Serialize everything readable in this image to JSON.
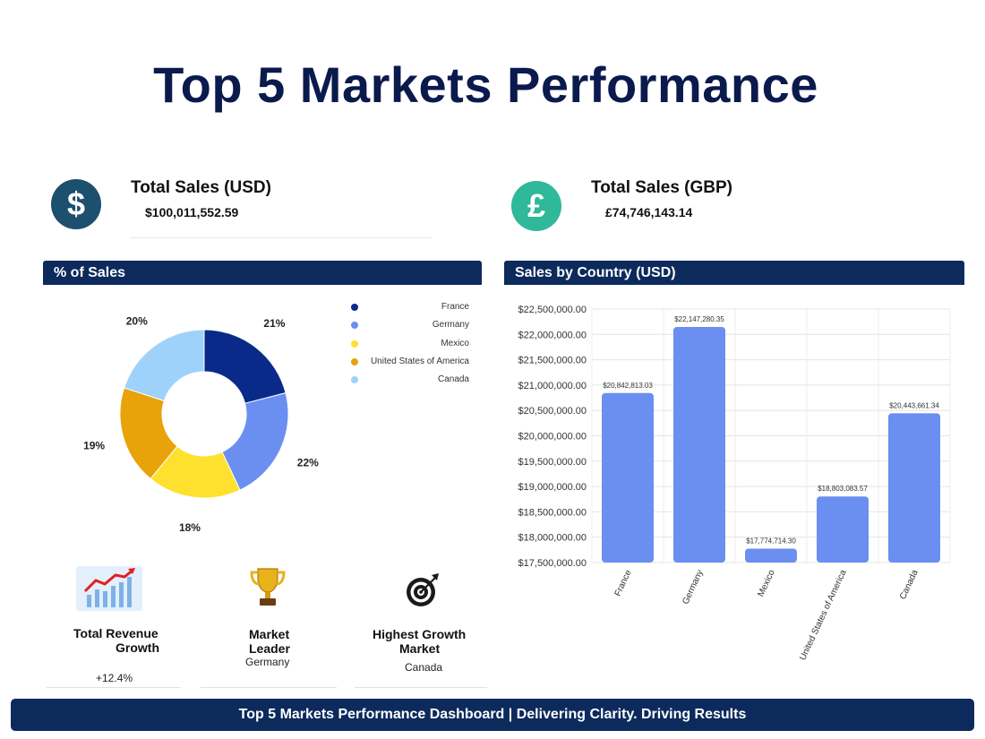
{
  "title": "Top 5 Markets Performance",
  "kpis": {
    "usd": {
      "icon": "dollar-icon",
      "symbol": "$",
      "label": "Total Sales (USD)",
      "value": "$100,011,552.59",
      "color": "#1d4f6e"
    },
    "gbp": {
      "icon": "pound-icon",
      "symbol": "£",
      "label": "Total Sales (GBP)",
      "value": "£74,746,143.14",
      "color": "#2fb89a"
    }
  },
  "pie_panel": {
    "title": "% of Sales"
  },
  "bar_panel": {
    "title": "Sales by Country (USD)"
  },
  "stats": {
    "revenue_growth": {
      "icon": "growth-chart-icon",
      "label_line1": "Total Revenue",
      "label_line2": "Growth",
      "value": "+12.4%"
    },
    "market_leader": {
      "icon": "trophy-icon",
      "label_line1": "Market",
      "label_line2": "Leader",
      "value": "Germany"
    },
    "highest_growth": {
      "icon": "target-icon",
      "label_line1": "Highest Growth",
      "label_line2": "Market",
      "value": "Canada"
    }
  },
  "footer": "Top 5 Markets Performance Dashboard | Delivering Clarity. Driving Results",
  "chart_data": [
    {
      "type": "pie",
      "donut": true,
      "title": "% of Sales",
      "categories": [
        "France",
        "Germany",
        "Mexico",
        "United States of America",
        "Canada"
      ],
      "values": [
        21,
        22,
        18,
        19,
        20
      ],
      "labels": [
        "21%",
        "22%",
        "18%",
        "19%",
        "20%"
      ],
      "colors": [
        "#0a2a8a",
        "#6a8ff0",
        "#fde12e",
        "#e8a20a",
        "#9fd2fa"
      ],
      "legend": "right"
    },
    {
      "type": "bar",
      "title": "Sales by Country (USD)",
      "categories": [
        "France",
        "Germany",
        "Mexico",
        "United States of America",
        "Canada"
      ],
      "values": [
        20842813.03,
        22147280.35,
        17774714.3,
        18803083.57,
        20443661.34
      ],
      "data_labels": [
        "$20,842,813.03",
        "$22,147,280.35",
        "$17,774,714.30",
        "$18,803,083.57",
        "$20,443,661.34"
      ],
      "ylim": [
        17500000,
        22500000
      ],
      "yticks": [
        "$17,500,000.00",
        "$18,000,000.00",
        "$18,500,000.00",
        "$19,000,000.00",
        "$19,500,000.00",
        "$20,000,000.00",
        "$20,500,000.00",
        "$21,000,000.00",
        "$21,500,000.00",
        "$22,000,000.00",
        "$22,500,000.00"
      ],
      "color": "#6a8ff0",
      "grid": true
    }
  ]
}
